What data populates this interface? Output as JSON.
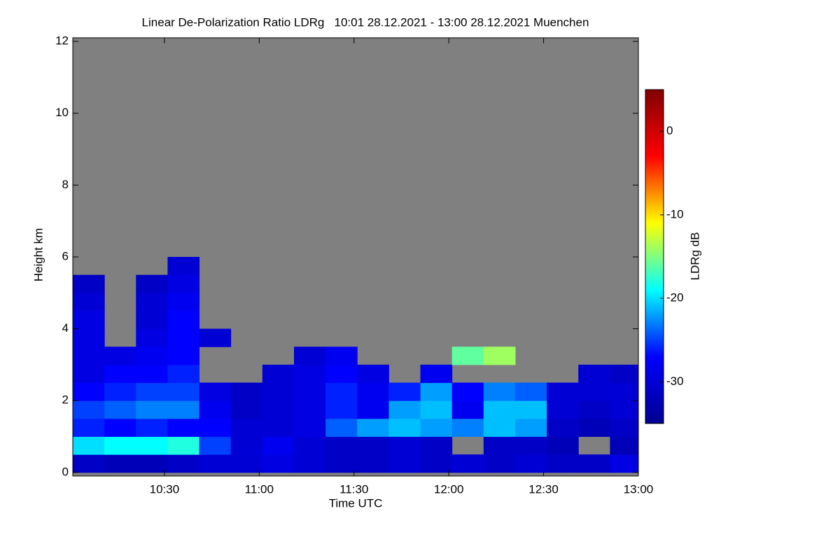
{
  "chart_data": {
    "type": "heatmap",
    "title": "Linear De-Polarization Ratio LDRg   10:01 28.12.2021 - 13:00 28.12.2021 Muenchen",
    "xlabel": "Time UTC",
    "ylabel": "Height km",
    "zlabel": "LDRg dB",
    "xlim": [
      601,
      780
    ],
    "xticks": [
      {
        "value": 630,
        "label": "10:30"
      },
      {
        "value": 660,
        "label": "11:00"
      },
      {
        "value": 690,
        "label": "11:30"
      },
      {
        "value": 720,
        "label": "12:00"
      },
      {
        "value": 750,
        "label": "12:30"
      },
      {
        "value": 780,
        "label": "13:00"
      }
    ],
    "ylim": [
      -0.1,
      12.1
    ],
    "yticks": [
      0,
      2,
      4,
      6,
      8,
      10,
      12
    ],
    "zlim": [
      -35,
      5
    ],
    "zticks": [
      0,
      -10,
      -20,
      -30
    ],
    "colormap": [
      "#00008f",
      "#0000ff",
      "#00ffff",
      "#ffff00",
      "#ff0000",
      "#800000"
    ],
    "nodata_color": "#808080",
    "xbins": [
      601,
      611,
      621,
      631,
      641,
      651,
      661,
      671,
      681,
      691,
      701,
      711,
      721,
      731,
      741,
      751,
      761,
      771,
      780
    ],
    "ybins": [
      0,
      0.5,
      1,
      1.5,
      2,
      2.5,
      3,
      3.5,
      4,
      4.5,
      5,
      5.5,
      6
    ],
    "z": [
      [
        -31,
        -32,
        -32,
        -31,
        -30,
        -30,
        -29,
        -30,
        -31,
        -31,
        -30,
        -31,
        -30,
        -31,
        -30,
        -31,
        -31,
        -29
      ],
      [
        -20,
        -19,
        -19,
        -18,
        -25,
        -30,
        -28,
        -30,
        -31,
        -31,
        -30,
        -31,
        null,
        -31,
        -31,
        -32,
        null,
        -32
      ],
      [
        -26,
        -27,
        -26,
        -27,
        -27,
        -30,
        -30,
        -29,
        -24,
        -22,
        -21,
        -22,
        -23,
        -21,
        -22,
        -31,
        -32,
        -31
      ],
      [
        -25,
        -24,
        -23,
        -23,
        -28,
        -31,
        -30,
        -29,
        -26,
        -28,
        -22,
        -21,
        -28,
        -21,
        -21,
        -30,
        -31,
        -30
      ],
      [
        -27,
        -26,
        -25,
        -25,
        -29,
        -31,
        -30,
        -29,
        -26,
        -28,
        -26,
        -22,
        -27,
        -23,
        -24,
        -30,
        -30,
        -30
      ],
      [
        -29,
        -27,
        -27,
        -26,
        null,
        null,
        -30,
        -29,
        -27,
        -29,
        null,
        -28,
        null,
        null,
        null,
        null,
        -30,
        -31
      ],
      [
        -29,
        -29,
        -28,
        -27,
        null,
        null,
        null,
        -30,
        -28,
        null,
        null,
        null,
        -16,
        -14,
        null,
        null,
        null,
        null
      ],
      [
        -29,
        null,
        -29,
        -27,
        -30,
        null,
        null,
        null,
        null,
        null,
        null,
        null,
        null,
        null,
        null,
        null,
        null,
        null
      ],
      [
        -29,
        null,
        -30,
        -27,
        null,
        null,
        null,
        null,
        null,
        null,
        null,
        null,
        null,
        null,
        null,
        null,
        null,
        null
      ],
      [
        -30,
        null,
        -30,
        -28,
        null,
        null,
        null,
        null,
        null,
        null,
        null,
        null,
        null,
        null,
        null,
        null,
        null,
        null
      ],
      [
        -31,
        null,
        -31,
        -29,
        null,
        null,
        null,
        null,
        null,
        null,
        null,
        null,
        null,
        null,
        null,
        null,
        null,
        null
      ],
      [
        null,
        null,
        null,
        -30,
        null,
        null,
        null,
        null,
        null,
        null,
        null,
        null,
        null,
        null,
        null,
        null,
        null,
        null
      ]
    ]
  }
}
